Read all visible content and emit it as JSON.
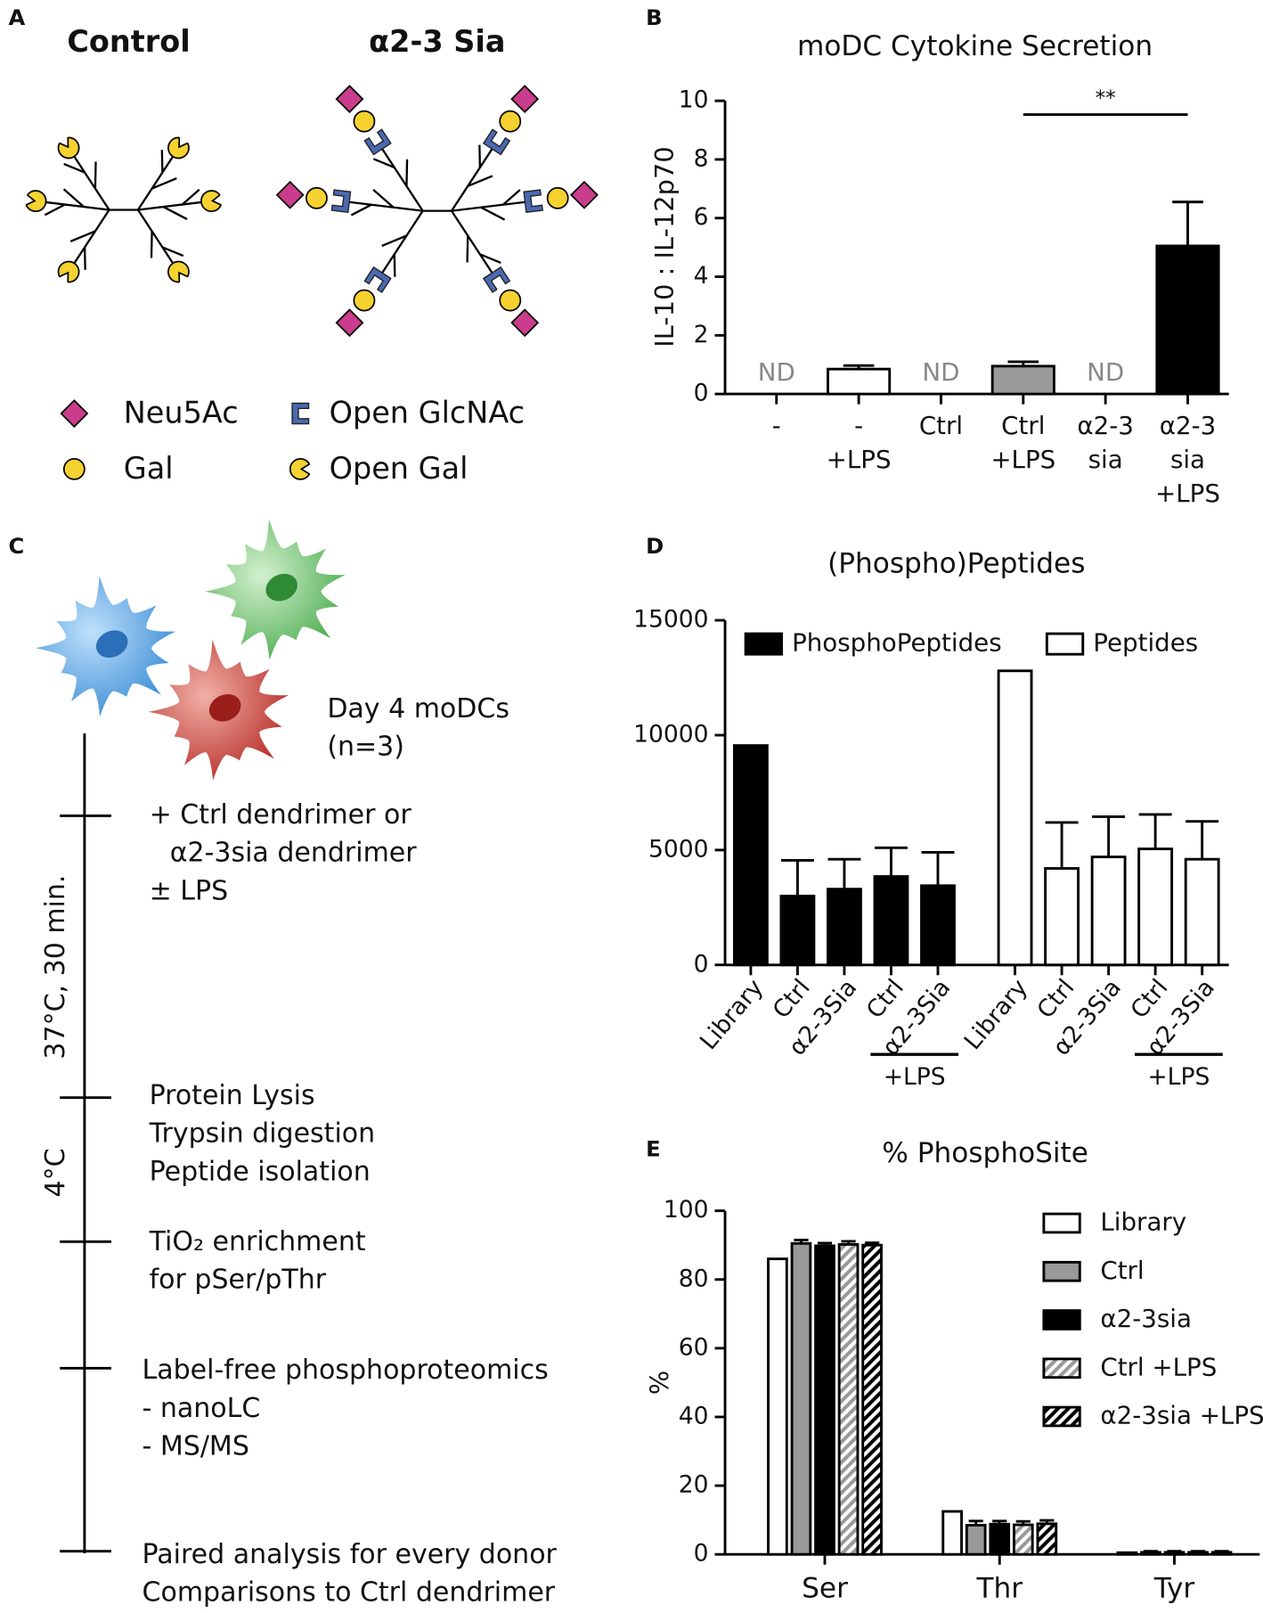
{
  "panel_labels": [
    "A",
    "B",
    "C",
    "D",
    "E"
  ],
  "glycans": {
    "titles": [
      "Control",
      "α2-3 Sia"
    ],
    "legend": [
      "Neu5Ac",
      "Open GlcNAc",
      "Gal",
      "Open Gal"
    ]
  },
  "workflow": {
    "cells": [
      "Day 4 moDCs",
      "(n=3)"
    ],
    "phases": [
      "37°C, 30 min.",
      "4°C"
    ],
    "steps": [
      [
        "+ Ctrl dendrimer or",
        "α2-3sia dendrimer",
        "± LPS"
      ],
      [
        "Protein Lysis",
        "Trypsin digestion",
        "Peptide isolation"
      ],
      [
        "TiO₂ enrichment",
        "for pSer/pThr"
      ],
      [
        "Label-free phosphoproteomics",
        "- nanoLC",
        "- MS/MS"
      ],
      [
        "Paired analysis for every donor",
        "Comparisons to Ctrl dendrimer"
      ]
    ]
  },
  "chart_data": [
    {
      "type": "bar",
      "title": "moDC Cytokine Secretion",
      "ylabel": "IL-10 : IL-12p70",
      "categories": [
        [
          "-"
        ],
        [
          "-",
          "+LPS"
        ],
        [
          "Ctrl"
        ],
        [
          "Ctrl",
          "+LPS"
        ],
        [
          "α2-3",
          "sia"
        ],
        [
          "α2-3",
          "sia",
          "+LPS"
        ]
      ],
      "values": [
        null,
        0.85,
        null,
        0.95,
        null,
        5.05
      ],
      "errors": [
        null,
        0.12,
        null,
        0.15,
        null,
        1.5
      ],
      "value_labels": [
        "ND",
        null,
        "ND",
        null,
        "ND",
        null
      ],
      "colors": [
        "#ffffff",
        "#ffffff",
        "#999999",
        "#999999",
        "#000000",
        "#000000"
      ],
      "ylim": [
        0,
        10
      ],
      "yticks": [
        0,
        2,
        4,
        6,
        8,
        10
      ],
      "annotations": [
        {
          "text": "**",
          "from": 3,
          "to": 5
        }
      ]
    },
    {
      "type": "bar",
      "grouping": "series",
      "title": "(Phospho)Peptides",
      "categories": [
        "Library",
        "Ctrl",
        "α2-3Sia",
        "Ctrl",
        "α2-3Sia"
      ],
      "group_label": {
        "text": "+LPS",
        "categories": [
          3,
          4
        ]
      },
      "series": [
        {
          "name": "PhosphoPeptides",
          "color": "#000000",
          "values": [
            9550,
            3000,
            3300,
            3850,
            3450
          ],
          "errors": [
            null,
            1550,
            1300,
            1250,
            1450
          ]
        },
        {
          "name": "Peptides",
          "color": "#ffffff",
          "values": [
            12800,
            4200,
            4700,
            5050,
            4600
          ],
          "errors": [
            null,
            2000,
            1750,
            1500,
            1650
          ]
        }
      ],
      "ylim": [
        0,
        15000
      ],
      "yticks": [
        0,
        5000,
        10000,
        15000
      ],
      "legend": "top"
    },
    {
      "type": "bar",
      "grouping": "categories",
      "title": "% PhosphoSite",
      "ylabel": "%",
      "categories": [
        "Ser",
        "Thr",
        "Tyr"
      ],
      "series": [
        {
          "name": "Library",
          "color": "#ffffff",
          "values": [
            86,
            12.5,
            0.5
          ]
        },
        {
          "name": "Ctrl",
          "color": "#999999",
          "values": [
            90.5,
            8.5,
            0.6
          ],
          "errors": [
            1,
            1.2,
            0.3
          ]
        },
        {
          "name": "α2-3sia",
          "color": "#000000",
          "values": [
            89.8,
            8.8,
            0.6
          ],
          "errors": [
            0.8,
            0.9,
            0.3
          ]
        },
        {
          "name": "Ctrl +LPS",
          "color": "#999999",
          "pattern": "hatch",
          "values": [
            90.2,
            8.6,
            0.6
          ],
          "errors": [
            0.9,
            1,
            0.3
          ]
        },
        {
          "name": "α2-3sia +LPS",
          "color": "#000000",
          "pattern": "hatch",
          "values": [
            90,
            8.9,
            0.6
          ],
          "errors": [
            0.7,
            1,
            0.3
          ]
        }
      ],
      "ylim": [
        0,
        100
      ],
      "yticks": [
        0,
        20,
        40,
        60,
        80,
        100
      ],
      "legend": "right"
    }
  ]
}
